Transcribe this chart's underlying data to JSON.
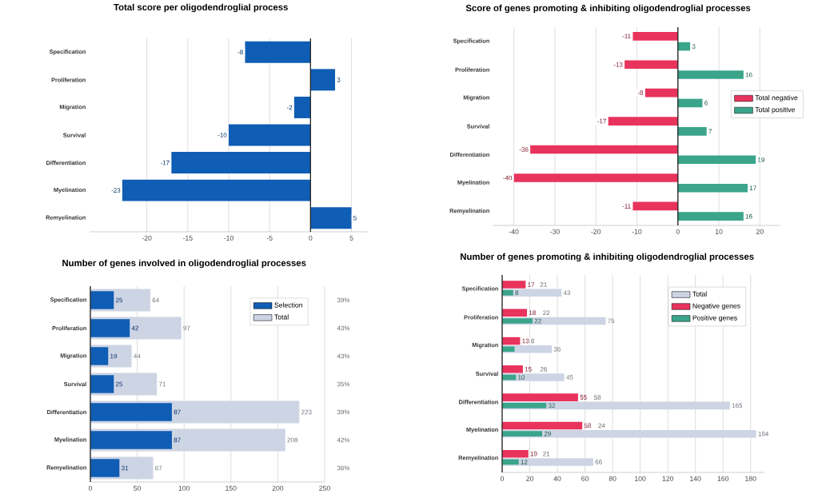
{
  "chart_data": [
    {
      "type": "bar",
      "orientation": "horizontal",
      "title": "Total score per oligodendroglial process",
      "categories": [
        "Specification",
        "Proliferation",
        "Migration",
        "Survival",
        "Differentiation",
        "Myelination",
        "Remyelination"
      ],
      "values": [
        -8,
        3,
        -2,
        -10,
        -17,
        -23,
        5
      ],
      "color": "#0f5db4",
      "xlim": [
        -27,
        7
      ],
      "xticks": [
        -20,
        -15,
        -10,
        -5,
        0,
        5
      ],
      "grid": "x",
      "data_labels": true
    },
    {
      "type": "bar",
      "orientation": "horizontal",
      "title": "Score of genes promoting & inhibiting oligodendroglial processes",
      "categories": [
        "Specification",
        "Proliferation",
        "Migration",
        "Survival",
        "Differentiation",
        "Myelination",
        "Remyelination"
      ],
      "series": [
        {
          "name": "Total negative",
          "color": "#e8335c",
          "values": [
            -11,
            -13,
            -8,
            -17,
            -36,
            -40,
            -11
          ]
        },
        {
          "name": "Total positive",
          "color": "#3aa58a",
          "values": [
            3,
            16,
            6,
            7,
            19,
            17,
            16
          ]
        }
      ],
      "xlim": [
        -45,
        25
      ],
      "xticks": [
        -40,
        -30,
        -20,
        -10,
        0,
        10,
        20
      ],
      "grid": "x",
      "legend": "right",
      "data_labels": true
    },
    {
      "type": "bar",
      "orientation": "horizontal",
      "title": "Number of genes involved in oligodendroglial processes",
      "categories": [
        "Specification",
        "Proliferation",
        "Migration",
        "Survival",
        "Differentiation",
        "Myelination",
        "Remyelination"
      ],
      "series": [
        {
          "name": "Selection",
          "color": "#0f5db4",
          "values": [
            25,
            42,
            19,
            25,
            87,
            87,
            31
          ]
        },
        {
          "name": "Total",
          "color": "#cdd4e4",
          "values": [
            64,
            97,
            44,
            71,
            223,
            208,
            67
          ]
        }
      ],
      "data_labels": true,
      "xlim": [
        0,
        250
      ],
      "xticks": [
        0,
        50,
        100,
        150,
        200,
        250
      ],
      "grid": "x",
      "legend": "top right",
      "annotations": [
        "39%",
        "43%",
        "43%",
        "35%",
        "39%",
        "42%",
        "36%"
      ]
    },
    {
      "type": "bar",
      "orientation": "horizontal",
      "title": "Number of genes promoting & inhibiting oligodendroglial processes",
      "categories": [
        "Specification",
        "Proliferation",
        "Migration",
        "Survival",
        "Differentiation",
        "Myelination",
        "Remyelination"
      ],
      "series": [
        {
          "name": "Total",
          "color": "#cdd4e4",
          "values": [
            43,
            75,
            36,
            45,
            165,
            184,
            66
          ]
        },
        {
          "name": "Negative genes",
          "color": "#e8335c",
          "values": [
            17,
            18,
            13,
            15,
            55,
            58,
            19
          ]
        },
        {
          "name": "Positive genes",
          "color": "#3aa58a",
          "values": [
            8,
            22,
            9,
            10,
            32,
            29,
            12
          ],
          "value_labels": [
            "8",
            "22",
            null,
            "10",
            "32",
            "29",
            "12"
          ]
        }
      ],
      "xlim": [
        0,
        190
      ],
      "xticks": [
        0,
        20,
        40,
        60,
        80,
        100,
        120,
        140,
        160,
        180
      ],
      "grid": "x",
      "legend": "top right",
      "data_labels": true,
      "annotations": [
        {
          "text": "21",
          "x": 30,
          "y": "Specification"
        },
        {
          "text": "22",
          "x": 32,
          "y": "Proliferation"
        },
        {
          "text": "8",
          "x": 22,
          "y": "Migration"
        },
        {
          "text": "26",
          "x": 30,
          "y": "Survival"
        },
        {
          "text": "58",
          "x": 69,
          "y": "Differentiation"
        },
        {
          "text": "24",
          "x": 72,
          "y": "Myelination"
        },
        {
          "text": "21",
          "x": 32,
          "y": "Remyelination"
        }
      ]
    }
  ]
}
